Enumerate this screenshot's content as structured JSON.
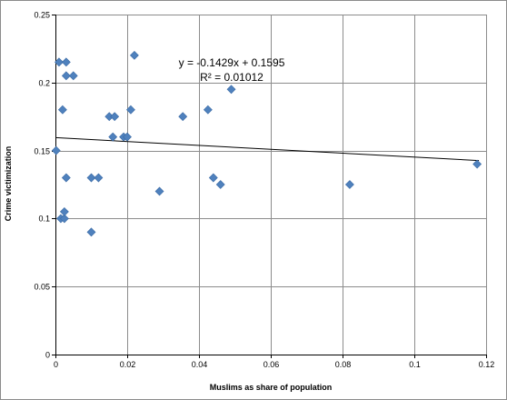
{
  "chart_data": {
    "type": "scatter",
    "title": "",
    "xlabel": "Muslims as share of population",
    "ylabel": "Crime victimization",
    "xlim": [
      0,
      0.12
    ],
    "ylim": [
      0,
      0.25
    ],
    "x_ticks": [
      0,
      0.02,
      0.04,
      0.06,
      0.08,
      0.1,
      0.12
    ],
    "x_tick_labels": [
      "0",
      "0.02",
      "0.04",
      "0.06",
      "0.08",
      "0.1",
      "0.12"
    ],
    "y_ticks": [
      0,
      0.05,
      0.1,
      0.15,
      0.2,
      0.25
    ],
    "y_tick_labels": [
      "0",
      "0.05",
      "0.1",
      "0.15",
      "0.2",
      "0.25"
    ],
    "grid": true,
    "legend": "none",
    "marker": "diamond",
    "marker_color": "#4f81bd",
    "series": [
      {
        "x": [
          0.0002,
          0.001,
          0.0015,
          0.002,
          0.0025,
          0.0025,
          0.003,
          0.003,
          0.003,
          0.005,
          0.01,
          0.01,
          0.012,
          0.015,
          0.016,
          0.0165,
          0.019,
          0.02,
          0.021,
          0.022,
          0.029,
          0.0355,
          0.0425,
          0.044,
          0.046,
          0.049,
          0.082,
          0.1175
        ],
        "y": [
          0.15,
          0.215,
          0.1,
          0.18,
          0.1,
          0.105,
          0.215,
          0.205,
          0.13,
          0.205,
          0.13,
          0.09,
          0.13,
          0.175,
          0.16,
          0.175,
          0.16,
          0.16,
          0.18,
          0.22,
          0.12,
          0.175,
          0.18,
          0.13,
          0.125,
          0.195,
          0.125,
          0.14
        ]
      }
    ],
    "trendline": {
      "type": "linear",
      "slope": -0.1429,
      "intercept": 0.1595,
      "equation": "y = -0.1429x + 0.1595",
      "r_squared": "R² = 0.01012"
    }
  }
}
